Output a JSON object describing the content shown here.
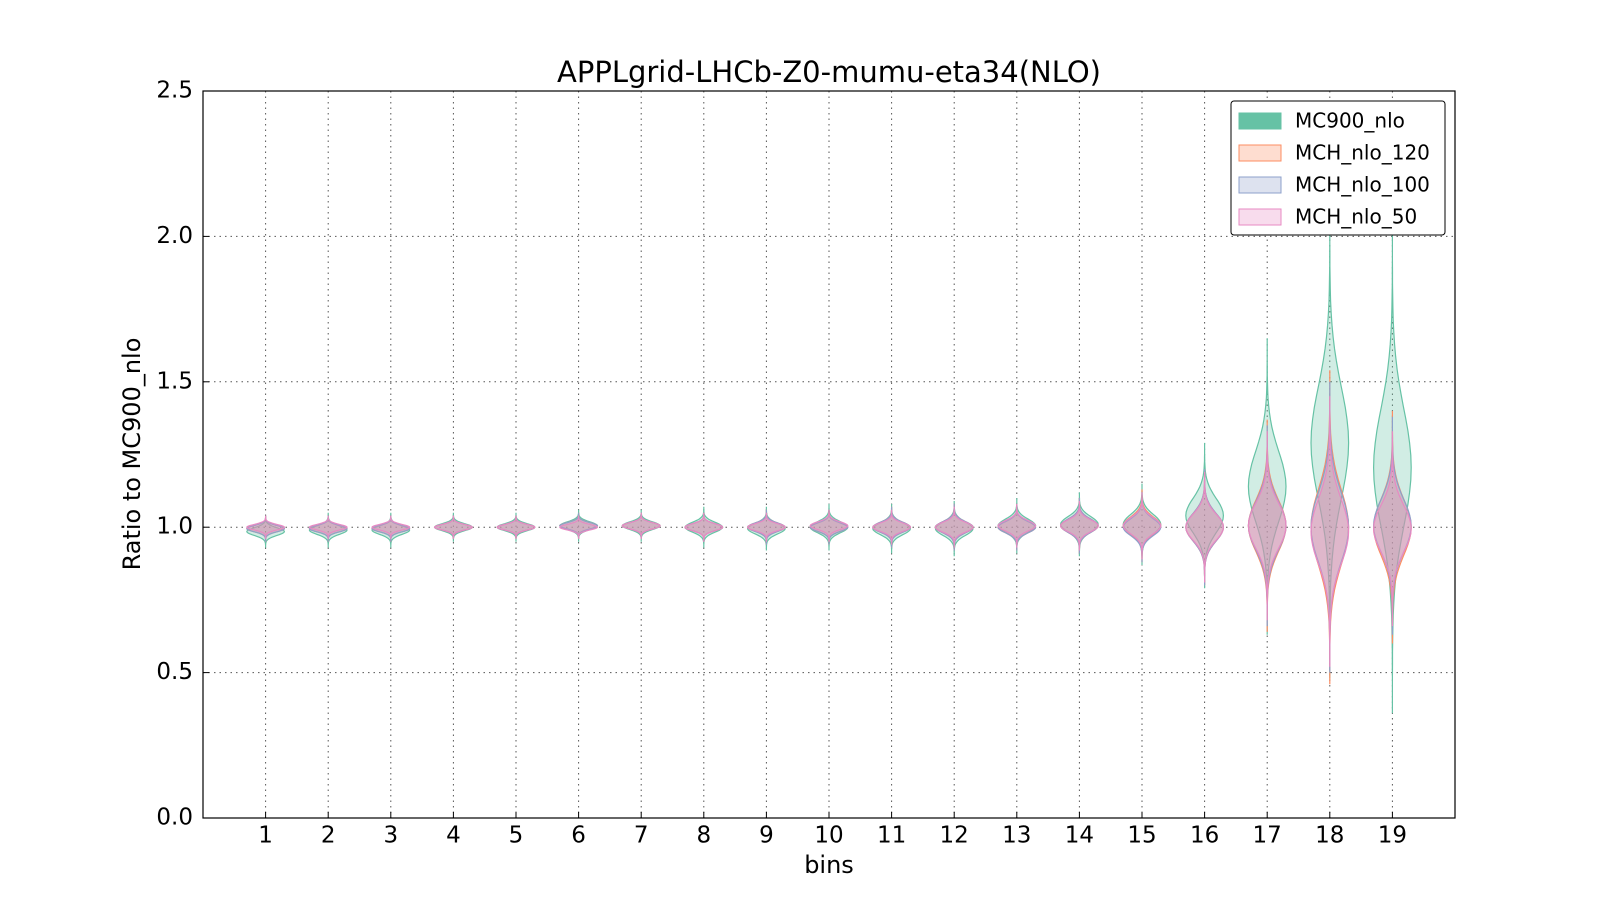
{
  "chart_data": {
    "type": "violin",
    "title": "APPLgrid-LHCb-Z0-mumu-eta34(NLO)",
    "x_label": "bins",
    "y_label": "Ratio to MC900_nlo",
    "xlim": [
      0,
      20
    ],
    "xticks": [
      1,
      2,
      3,
      4,
      5,
      6,
      7,
      8,
      9,
      10,
      11,
      12,
      13,
      14,
      15,
      16,
      17,
      18,
      19
    ],
    "ylim": [
      0,
      2.5
    ],
    "yticks": [
      {
        "value": 0,
        "label": "0.0"
      },
      {
        "value": 0.5,
        "label": "0.5"
      },
      {
        "value": 1,
        "label": "1.0"
      },
      {
        "value": 1.5,
        "label": "1.5"
      },
      {
        "value": 2,
        "label": "2.0"
      },
      {
        "value": 2.5,
        "label": "2.5"
      }
    ],
    "grid": true,
    "legend": "upper right",
    "positions": [
      1,
      2,
      3,
      4,
      5,
      6,
      7,
      8,
      9,
      10,
      11,
      12,
      13,
      14,
      15,
      16,
      17,
      18,
      19
    ],
    "series": [
      {
        "name": "MC900_nlo",
        "color": "#66c2a5",
        "min": [
          0.93,
          0.93,
          0.93,
          0.95,
          0.95,
          0.95,
          0.95,
          0.93,
          0.92,
          0.92,
          0.91,
          0.9,
          0.91,
          0.9,
          0.87,
          0.79,
          0.63,
          0.48,
          0.36
        ],
        "max": [
          1.04,
          1.05,
          1.05,
          1.05,
          1.05,
          1.06,
          1.06,
          1.07,
          1.07,
          1.08,
          1.08,
          1.09,
          1.1,
          1.12,
          1.15,
          1.29,
          1.65,
          2.1,
          2.05
        ]
      },
      {
        "name": "MCH_nlo_120",
        "color": "#fc8d62",
        "min": [
          0.95,
          0.95,
          0.95,
          0.96,
          0.96,
          0.96,
          0.96,
          0.95,
          0.94,
          0.94,
          0.93,
          0.92,
          0.92,
          0.91,
          0.88,
          0.8,
          0.64,
          0.46,
          0.6
        ],
        "max": [
          1.04,
          1.04,
          1.04,
          1.04,
          1.04,
          1.05,
          1.05,
          1.05,
          1.06,
          1.06,
          1.07,
          1.08,
          1.08,
          1.1,
          1.13,
          1.2,
          1.37,
          1.54,
          1.4
        ]
      },
      {
        "name": "MCH_nlo_100",
        "color": "#8da0cb",
        "min": [
          0.95,
          0.95,
          0.95,
          0.96,
          0.96,
          0.96,
          0.96,
          0.95,
          0.94,
          0.94,
          0.93,
          0.92,
          0.92,
          0.91,
          0.88,
          0.8,
          0.66,
          0.5,
          0.63
        ],
        "max": [
          1.04,
          1.04,
          1.04,
          1.04,
          1.04,
          1.05,
          1.05,
          1.05,
          1.06,
          1.06,
          1.07,
          1.08,
          1.08,
          1.1,
          1.12,
          1.2,
          1.35,
          1.5,
          1.38
        ]
      },
      {
        "name": "MCH_nlo_50",
        "color": "#e78ac3",
        "min": [
          0.96,
          0.96,
          0.96,
          0.96,
          0.96,
          0.96,
          0.96,
          0.95,
          0.95,
          0.95,
          0.94,
          0.93,
          0.93,
          0.92,
          0.89,
          0.81,
          0.68,
          0.52,
          0.66
        ],
        "max": [
          1.04,
          1.04,
          1.04,
          1.04,
          1.04,
          1.04,
          1.05,
          1.05,
          1.05,
          1.06,
          1.06,
          1.07,
          1.08,
          1.09,
          1.12,
          1.19,
          1.33,
          1.45,
          1.33
        ]
      }
    ]
  }
}
